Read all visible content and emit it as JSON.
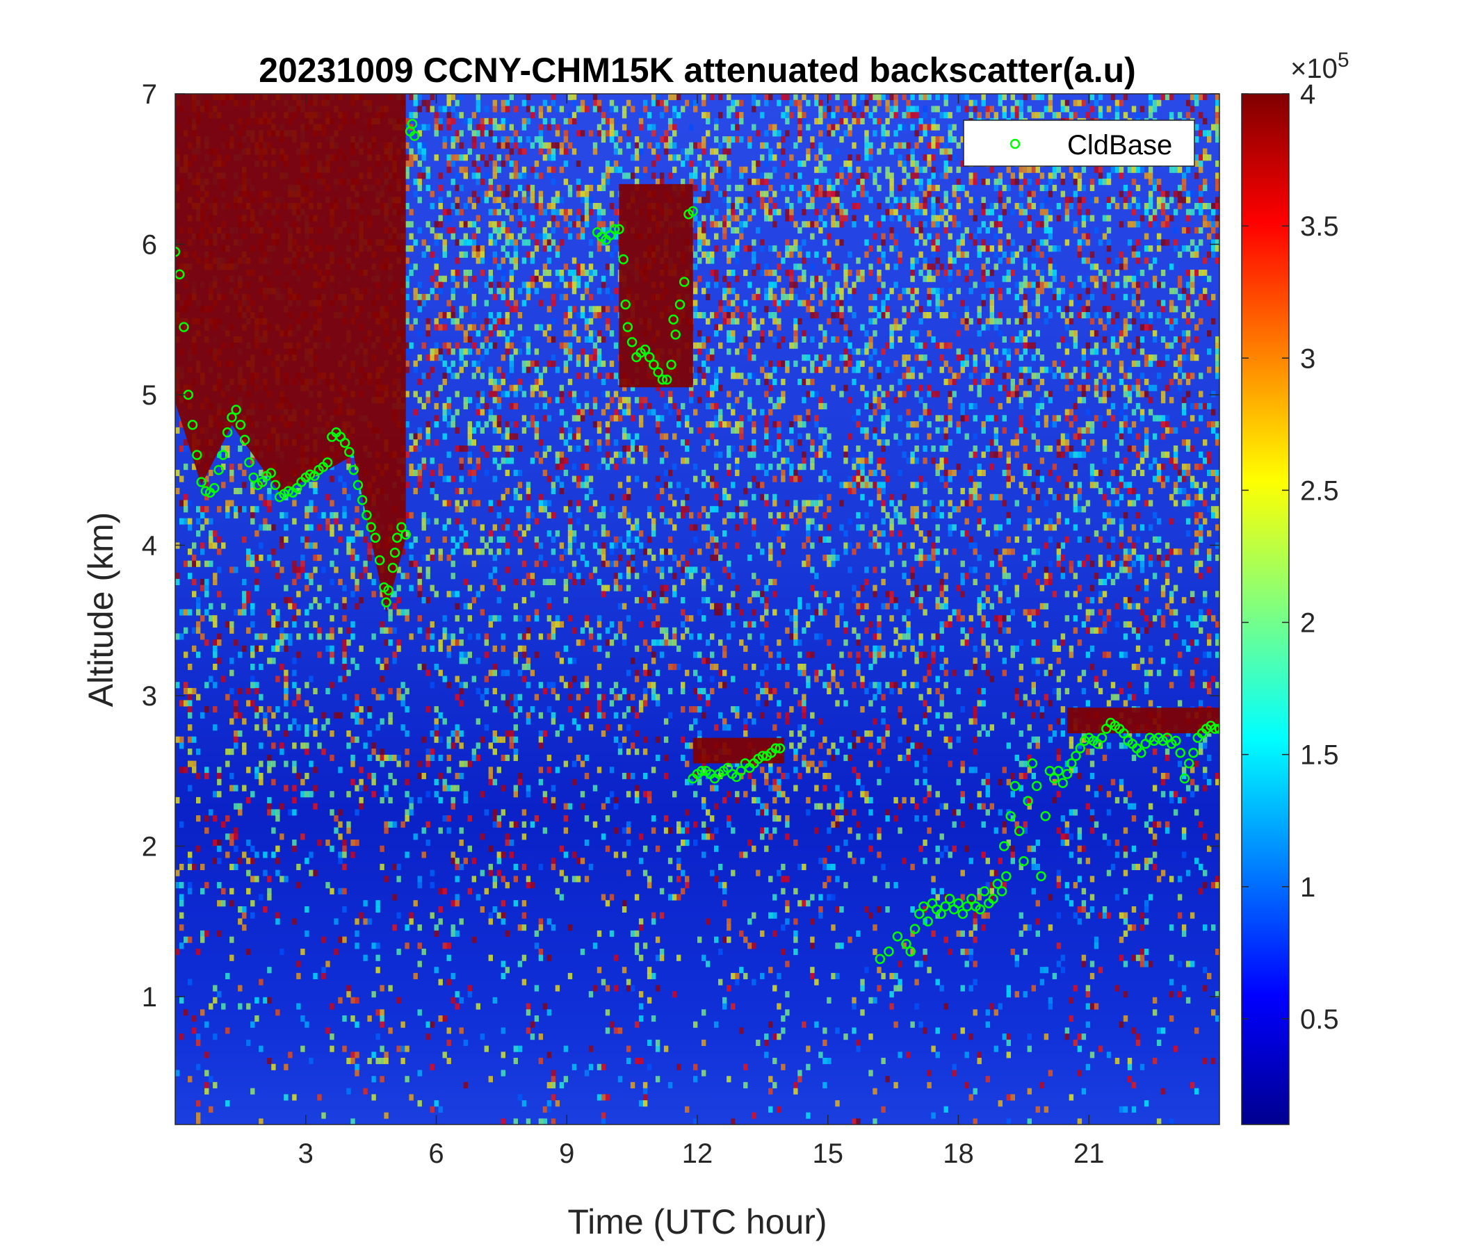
{
  "chart_data": {
    "type": "heatmap",
    "title": "20231009 CCNY-CHM15K attenuated backscatter(a.u)",
    "xlabel": "Time (UTC hour)",
    "ylabel": "Altitude (km)",
    "xlim": [
      0,
      24
    ],
    "ylim": [
      0.15,
      7
    ],
    "xticks": [
      3,
      6,
      9,
      12,
      15,
      18,
      21
    ],
    "yticks": [
      1,
      2,
      3,
      4,
      5,
      6,
      7
    ],
    "colorbar": {
      "colormap": "jet",
      "clim": [
        0.1,
        4
      ],
      "ticks": [
        0.5,
        1,
        1.5,
        2,
        2.5,
        3,
        3.5,
        4
      ],
      "tick_labels": [
        "0.5",
        "1",
        "1.5",
        "2",
        "2.5",
        "3",
        "3.5",
        "4"
      ],
      "multiplier_prefix": "×10",
      "multiplier_exponent": "5"
    },
    "legend": {
      "placement": "top-right",
      "entries": [
        "CldBase"
      ]
    },
    "series": [
      {
        "name": "CldBase",
        "marker": "circle",
        "color": "#00ff00",
        "points": [
          [
            0.0,
            5.95
          ],
          [
            0.1,
            5.8
          ],
          [
            0.2,
            5.45
          ],
          [
            0.3,
            5.0
          ],
          [
            0.4,
            4.8
          ],
          [
            0.5,
            4.6
          ],
          [
            0.6,
            4.42
          ],
          [
            0.7,
            4.36
          ],
          [
            0.8,
            4.35
          ],
          [
            0.9,
            4.38
          ],
          [
            1.0,
            4.5
          ],
          [
            1.1,
            4.6
          ],
          [
            1.2,
            4.75
          ],
          [
            1.3,
            4.85
          ],
          [
            1.4,
            4.9
          ],
          [
            1.5,
            4.8
          ],
          [
            1.6,
            4.7
          ],
          [
            1.7,
            4.55
          ],
          [
            1.8,
            4.45
          ],
          [
            1.9,
            4.4
          ],
          [
            2.0,
            4.42
          ],
          [
            2.1,
            4.46
          ],
          [
            2.2,
            4.48
          ],
          [
            2.3,
            4.4
          ],
          [
            2.4,
            4.32
          ],
          [
            2.5,
            4.34
          ],
          [
            2.6,
            4.36
          ],
          [
            2.7,
            4.35
          ],
          [
            2.8,
            4.38
          ],
          [
            2.9,
            4.42
          ],
          [
            3.0,
            4.45
          ],
          [
            3.1,
            4.47
          ],
          [
            3.2,
            4.46
          ],
          [
            3.3,
            4.5
          ],
          [
            3.4,
            4.52
          ],
          [
            3.5,
            4.55
          ],
          [
            3.6,
            4.72
          ],
          [
            3.7,
            4.75
          ],
          [
            3.8,
            4.72
          ],
          [
            3.9,
            4.68
          ],
          [
            4.0,
            4.62
          ],
          [
            4.1,
            4.5
          ],
          [
            4.2,
            4.4
          ],
          [
            4.3,
            4.3
          ],
          [
            4.4,
            4.2
          ],
          [
            4.5,
            4.12
          ],
          [
            4.6,
            4.05
          ],
          [
            4.7,
            3.9
          ],
          [
            4.8,
            3.72
          ],
          [
            4.85,
            3.62
          ],
          [
            4.9,
            3.7
          ],
          [
            5.0,
            3.85
          ],
          [
            5.05,
            3.95
          ],
          [
            5.1,
            4.05
          ],
          [
            5.2,
            4.12
          ],
          [
            5.3,
            4.07
          ],
          [
            5.4,
            6.75
          ],
          [
            5.45,
            6.8
          ],
          [
            5.5,
            6.72
          ],
          [
            9.7,
            6.08
          ],
          [
            9.8,
            6.05
          ],
          [
            9.9,
            6.03
          ],
          [
            10.0,
            6.06
          ],
          [
            10.1,
            6.1
          ],
          [
            10.2,
            6.1
          ],
          [
            10.3,
            5.9
          ],
          [
            10.35,
            5.6
          ],
          [
            10.4,
            5.45
          ],
          [
            10.5,
            5.35
          ],
          [
            10.6,
            5.25
          ],
          [
            10.7,
            5.28
          ],
          [
            10.8,
            5.3
          ],
          [
            10.9,
            5.25
          ],
          [
            11.0,
            5.2
          ],
          [
            11.1,
            5.15
          ],
          [
            11.2,
            5.1
          ],
          [
            11.3,
            5.1
          ],
          [
            11.4,
            5.2
          ],
          [
            11.45,
            5.5
          ],
          [
            11.5,
            5.4
          ],
          [
            11.6,
            5.6
          ],
          [
            11.7,
            5.75
          ],
          [
            11.8,
            6.2
          ],
          [
            11.9,
            6.22
          ],
          [
            11.9,
            2.45
          ],
          [
            12.0,
            2.48
          ],
          [
            12.1,
            2.5
          ],
          [
            12.2,
            2.5
          ],
          [
            12.3,
            2.48
          ],
          [
            12.4,
            2.45
          ],
          [
            12.5,
            2.48
          ],
          [
            12.6,
            2.5
          ],
          [
            12.7,
            2.52
          ],
          [
            12.8,
            2.48
          ],
          [
            12.9,
            2.46
          ],
          [
            13.0,
            2.5
          ],
          [
            13.1,
            2.55
          ],
          [
            13.2,
            2.52
          ],
          [
            13.3,
            2.55
          ],
          [
            13.4,
            2.58
          ],
          [
            13.5,
            2.6
          ],
          [
            13.6,
            2.6
          ],
          [
            13.7,
            2.62
          ],
          [
            13.8,
            2.65
          ],
          [
            13.9,
            2.65
          ],
          [
            16.2,
            1.25
          ],
          [
            16.4,
            1.3
          ],
          [
            16.6,
            1.4
          ],
          [
            16.8,
            1.35
          ],
          [
            16.9,
            1.3
          ],
          [
            17.0,
            1.45
          ],
          [
            17.1,
            1.55
          ],
          [
            17.2,
            1.6
          ],
          [
            17.3,
            1.5
          ],
          [
            17.4,
            1.62
          ],
          [
            17.5,
            1.58
          ],
          [
            17.6,
            1.55
          ],
          [
            17.7,
            1.6
          ],
          [
            17.8,
            1.65
          ],
          [
            17.9,
            1.58
          ],
          [
            18.0,
            1.62
          ],
          [
            18.1,
            1.55
          ],
          [
            18.2,
            1.6
          ],
          [
            18.3,
            1.65
          ],
          [
            18.4,
            1.6
          ],
          [
            18.5,
            1.58
          ],
          [
            18.6,
            1.7
          ],
          [
            18.7,
            1.62
          ],
          [
            18.8,
            1.65
          ],
          [
            18.9,
            1.75
          ],
          [
            19.0,
            1.7
          ],
          [
            19.05,
            2.0
          ],
          [
            19.1,
            1.8
          ],
          [
            19.2,
            2.2
          ],
          [
            19.3,
            2.4
          ],
          [
            19.4,
            2.1
          ],
          [
            19.5,
            1.9
          ],
          [
            19.6,
            2.3
          ],
          [
            19.7,
            2.55
          ],
          [
            19.8,
            2.4
          ],
          [
            19.9,
            1.8
          ],
          [
            20.0,
            2.2
          ],
          [
            20.1,
            2.5
          ],
          [
            20.2,
            2.45
          ],
          [
            20.3,
            2.5
          ],
          [
            20.4,
            2.42
          ],
          [
            20.5,
            2.48
          ],
          [
            20.6,
            2.55
          ],
          [
            20.7,
            2.6
          ],
          [
            20.8,
            2.65
          ],
          [
            20.9,
            2.7
          ],
          [
            21.0,
            2.72
          ],
          [
            21.1,
            2.7
          ],
          [
            21.2,
            2.68
          ],
          [
            21.3,
            2.72
          ],
          [
            21.4,
            2.78
          ],
          [
            21.5,
            2.82
          ],
          [
            21.6,
            2.8
          ],
          [
            21.7,
            2.78
          ],
          [
            21.8,
            2.75
          ],
          [
            21.9,
            2.7
          ],
          [
            22.0,
            2.68
          ],
          [
            22.1,
            2.65
          ],
          [
            22.2,
            2.62
          ],
          [
            22.3,
            2.68
          ],
          [
            22.4,
            2.72
          ],
          [
            22.5,
            2.7
          ],
          [
            22.6,
            2.72
          ],
          [
            22.7,
            2.7
          ],
          [
            22.8,
            2.72
          ],
          [
            22.9,
            2.68
          ],
          [
            23.0,
            2.7
          ],
          [
            23.1,
            2.62
          ],
          [
            23.2,
            2.45
          ],
          [
            23.3,
            2.55
          ],
          [
            23.4,
            2.62
          ],
          [
            23.5,
            2.72
          ],
          [
            23.6,
            2.75
          ],
          [
            23.7,
            2.78
          ],
          [
            23.8,
            2.8
          ],
          [
            23.9,
            2.78
          ],
          [
            24.0,
            2.78
          ]
        ]
      }
    ],
    "regions": [
      {
        "x": [
          0.0,
          5.3
        ],
        "ytop": 7.0,
        "ybottom_shape": [
          [
            0,
            4.95
          ],
          [
            0.6,
            4.4
          ],
          [
            1.3,
            4.8
          ],
          [
            2.4,
            4.35
          ],
          [
            3.5,
            4.5
          ],
          [
            4.1,
            4.6
          ],
          [
            4.85,
            3.55
          ],
          [
            5.3,
            4.05
          ]
        ],
        "level": "max"
      },
      {
        "x": [
          10.2,
          11.9
        ],
        "ytop": 6.4,
        "ybottom": 5.05,
        "level": "max"
      },
      {
        "x": [
          11.9,
          14.0
        ],
        "ytop": 2.72,
        "ybottom": 2.55,
        "level": "max"
      },
      {
        "x": [
          20.5,
          24.0
        ],
        "ytop": 2.92,
        "ybottom": 2.75,
        "level": "max"
      }
    ]
  }
}
